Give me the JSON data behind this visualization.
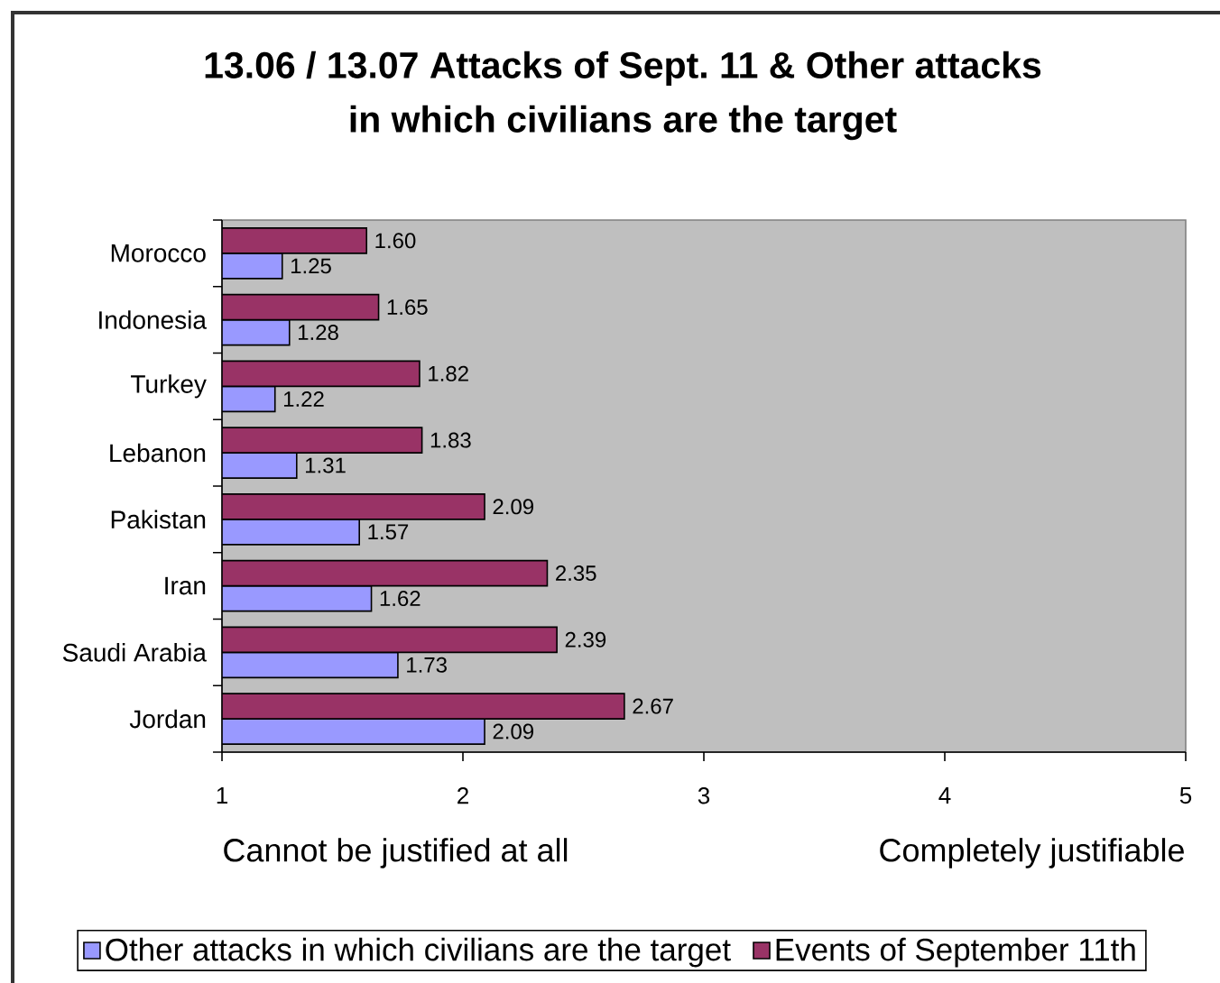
{
  "chart_data": {
    "type": "bar",
    "orientation": "horizontal",
    "title": "13.06 / 13.07 Attacks of Sept. 11 & Other attacks in which civilians are the target",
    "categories": [
      "Morocco",
      "Indonesia",
      "Turkey",
      "Lebanon",
      "Pakistan",
      "Iran",
      "Saudi Arabia",
      "Jordan"
    ],
    "series": [
      {
        "name": "Other attacks in which civilians are the target",
        "color": "#9999ff",
        "values": [
          1.25,
          1.28,
          1.22,
          1.31,
          1.57,
          1.62,
          1.73,
          2.09
        ],
        "value_labels": [
          "1.25",
          "1.28",
          "1.22",
          "1.31",
          "1.57",
          "1.62",
          "1.73",
          "2.09"
        ]
      },
      {
        "name": "Events of September 11th",
        "color": "#993366",
        "values": [
          1.6,
          1.65,
          1.82,
          1.83,
          2.09,
          2.35,
          2.39,
          2.67
        ],
        "value_labels": [
          "1.60",
          "1.65",
          "1.82",
          "1.83",
          "2.09",
          "2.35",
          "2.39",
          "2.67"
        ]
      }
    ],
    "xlim": [
      1,
      5
    ],
    "xticks": [
      1,
      2,
      3,
      4,
      5
    ],
    "annotations": [
      "Cannot be justified at all",
      "Completely justifiable"
    ],
    "legend": "bottom"
  }
}
